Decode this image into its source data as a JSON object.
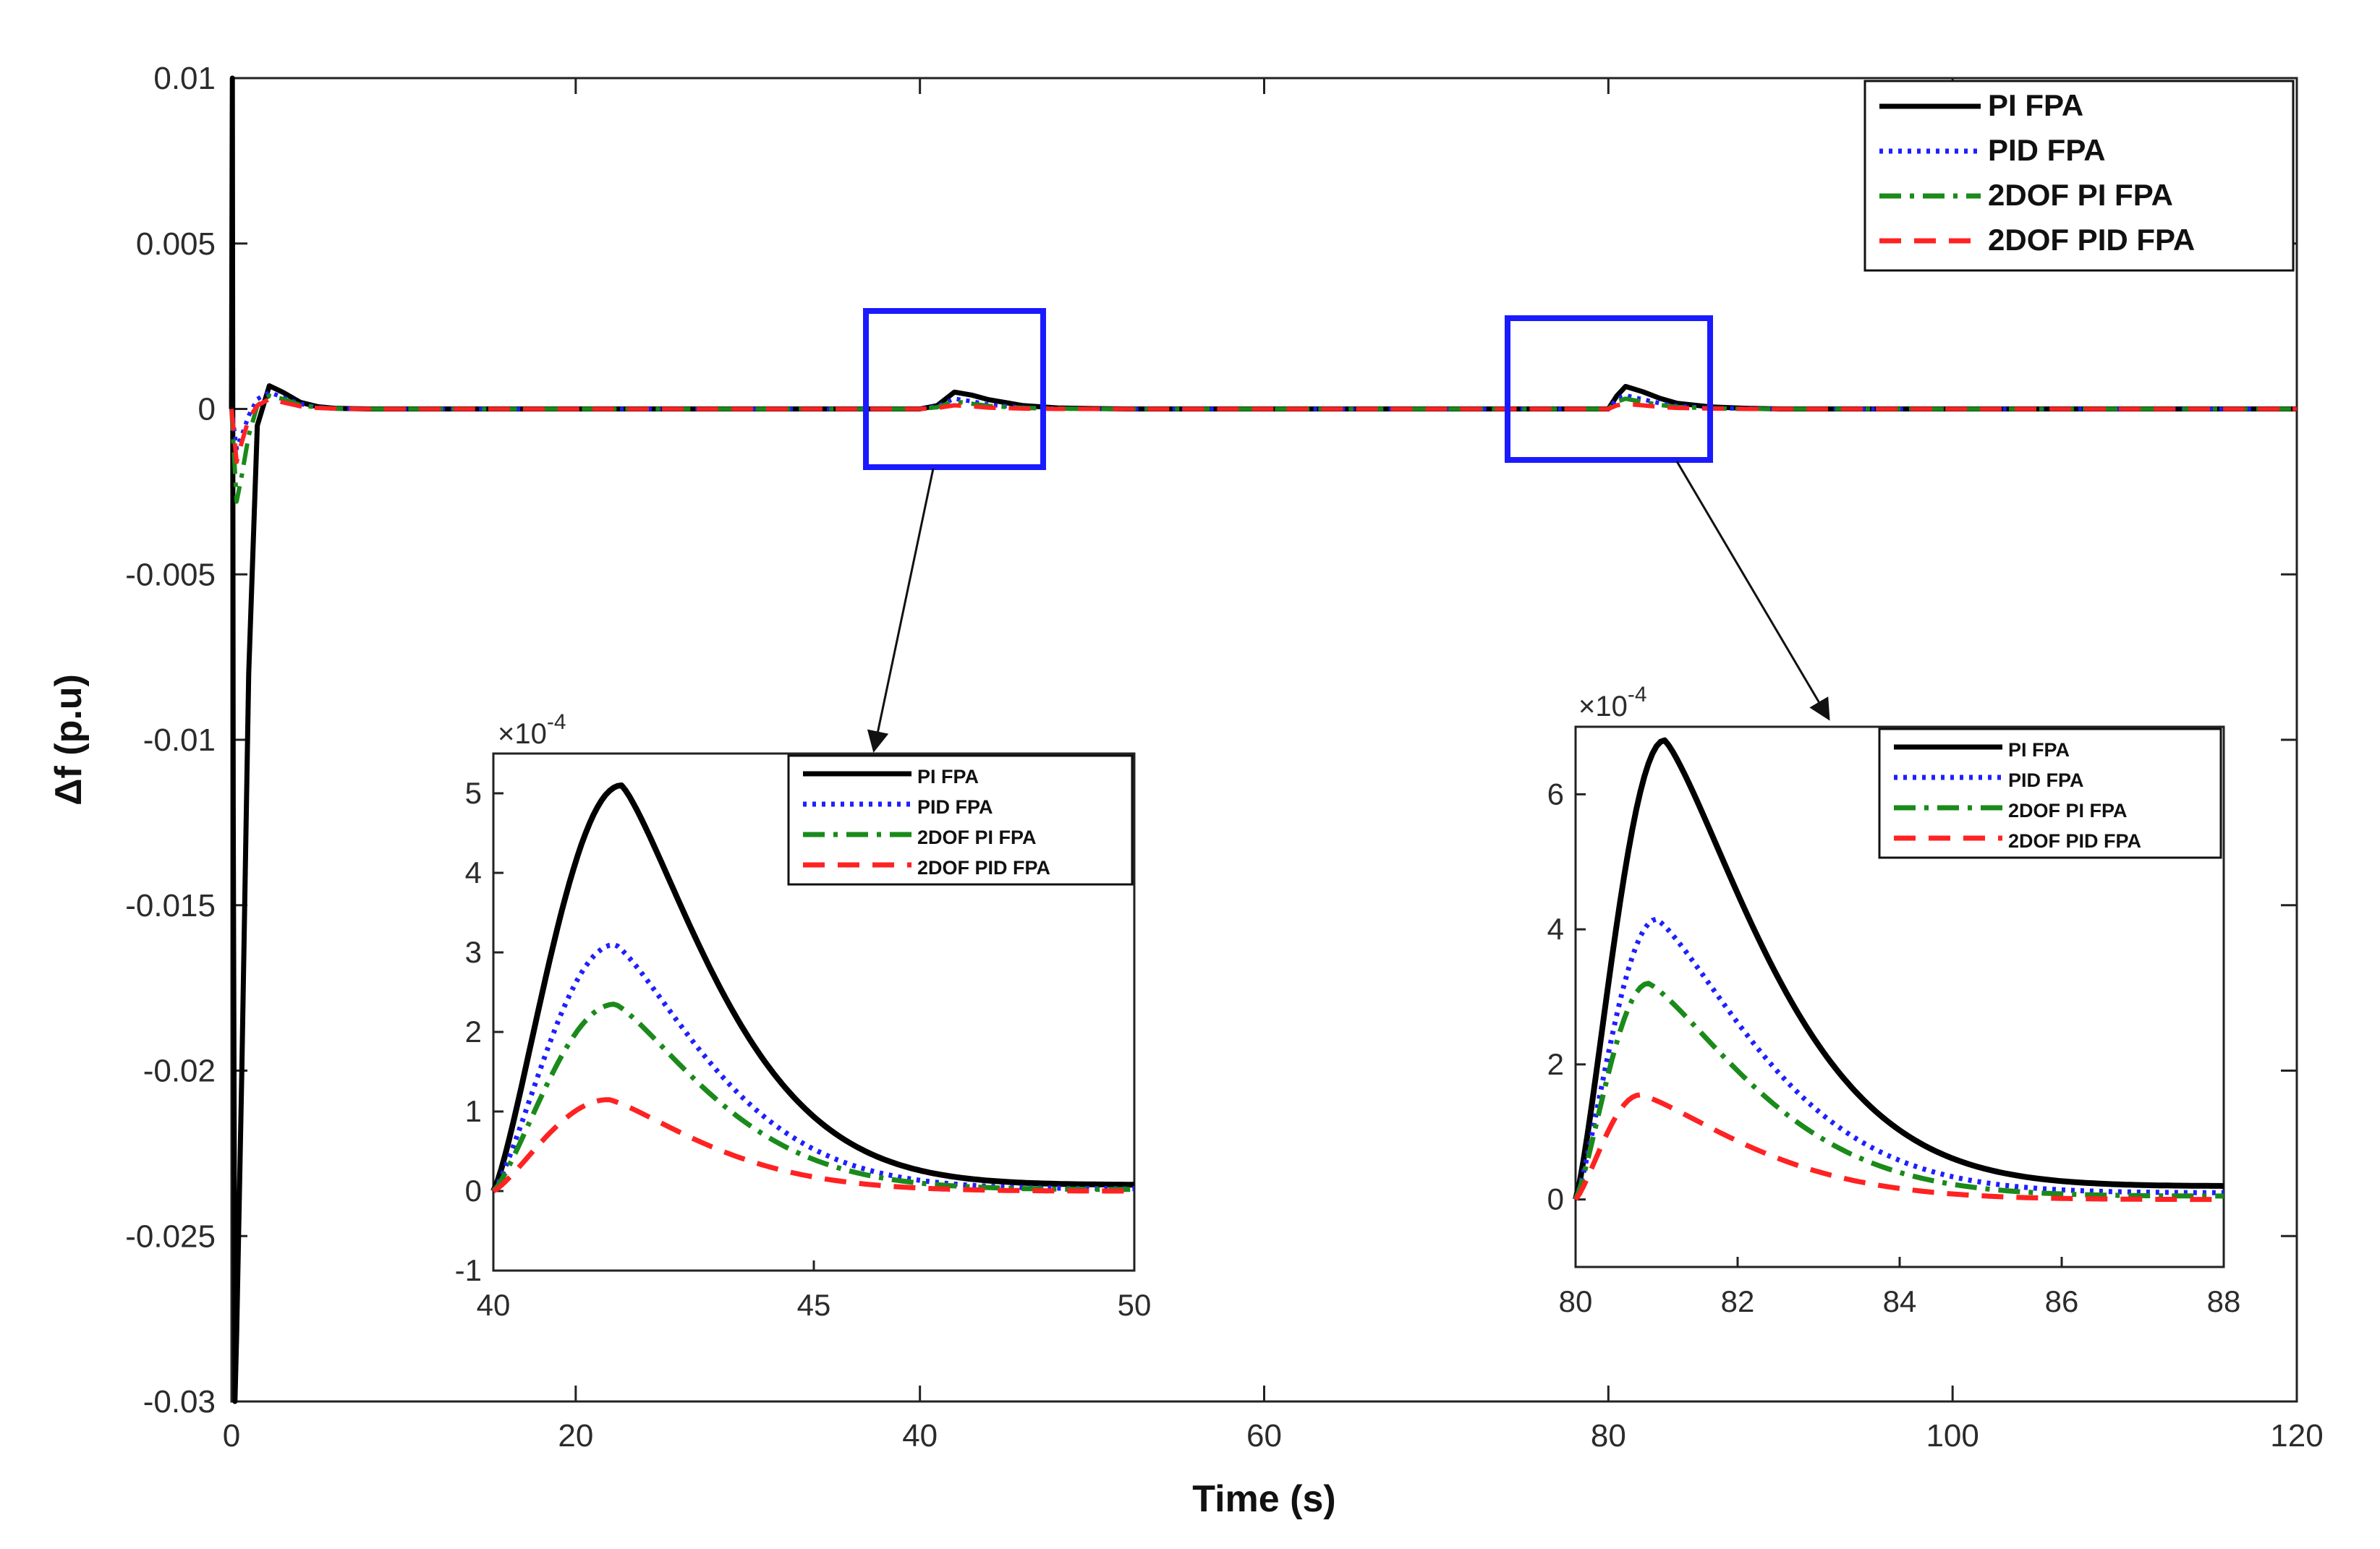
{
  "colors": {
    "pi_fpa": "#000000",
    "pid_fpa": "#1f1fff",
    "twodof_pi_fpa": "#1a8a1a",
    "twodof_pid_fpa": "#ff2222",
    "zoom_box": "#1a1aff"
  },
  "chart_data": [
    {
      "id": "main",
      "type": "line",
      "xlabel": "Time (s)",
      "ylabel": "Δf (p.u)",
      "xlim": [
        0,
        120
      ],
      "ylim": [
        -0.03,
        0.01
      ],
      "x_ticks": [
        0,
        20,
        40,
        60,
        80,
        100,
        120
      ],
      "x_tick_labels": [
        "0",
        "20",
        "40",
        "60",
        "80",
        "100",
        "120"
      ],
      "y_ticks": [
        0.01,
        0.005,
        0,
        -0.005,
        -0.01,
        -0.015,
        -0.02,
        -0.025,
        -0.03
      ],
      "y_tick_labels": [
        "0.01",
        "0.005",
        "0",
        "-0.005",
        "-0.01",
        "-0.015",
        "-0.02",
        "-0.025",
        "-0.03"
      ],
      "legend_position": "top-right",
      "series": [
        {
          "name": "PI FPA",
          "color_key": "pi_fpa",
          "style": "solid",
          "x": [
            0,
            0.05,
            0.1,
            0.2,
            0.3,
            0.6,
            1.0,
            1.5,
            2.2,
            3.0,
            4.0,
            5.0,
            6.0,
            8.0,
            10,
            40,
            41.0,
            42.0,
            43.0,
            44.0,
            46.0,
            48.0,
            50.0,
            52,
            80,
            80.5,
            81.0,
            82.0,
            83.0,
            84.0,
            86.0,
            88.0,
            90,
            120
          ],
          "y": [
            0,
            0.01,
            -0.012,
            -0.03,
            -0.028,
            -0.02,
            -0.008,
            -0.0005,
            0.0007,
            0.0005,
            0.0002,
            7e-05,
            2e-05,
            0,
            0,
            0,
            0.0001,
            0.00051,
            0.00042,
            0.00028,
            0.0001,
            3e-05,
            1e-05,
            0,
            0,
            0.0004,
            0.00068,
            0.00052,
            0.00032,
            0.00017,
            6e-05,
            2e-05,
            0,
            0
          ]
        },
        {
          "name": "PID FPA",
          "color_key": "pid_fpa",
          "style": "dotted",
          "x": [
            0,
            0.3,
            0.6,
            1.0,
            1.5,
            2.2,
            3.0,
            4.0,
            5.0,
            6.0,
            8.0,
            10,
            40,
            41.0,
            42.0,
            43.0,
            44.0,
            46.0,
            48.0,
            50.0,
            52,
            80,
            80.5,
            81.0,
            82.0,
            83.0,
            84.0,
            86.0,
            88.0,
            90,
            120
          ],
          "y": [
            0,
            -0.0012,
            -0.0008,
            -0.0002,
            0.0003,
            0.0005,
            0.00035,
            0.00015,
            5e-05,
            1e-05,
            0,
            0,
            0,
            8e-05,
            0.00031,
            0.00023,
            0.00013,
            4e-05,
            1e-05,
            0,
            0,
            0,
            0.0003,
            0.00041,
            0.00029,
            0.00017,
            9e-05,
            2e-05,
            1e-05,
            0,
            0
          ]
        },
        {
          "name": "2DOF PI FPA",
          "color_key": "twodof_pi_fpa",
          "style": "dashdot",
          "x": [
            0,
            0.3,
            0.6,
            1.0,
            1.5,
            2.2,
            3.0,
            4.0,
            5.0,
            6.0,
            8.0,
            10,
            40,
            41.0,
            42.0,
            43.0,
            44.0,
            46.0,
            48.0,
            50.0,
            52,
            80,
            80.5,
            81.0,
            82.0,
            83.0,
            84.0,
            86.0,
            88.0,
            90,
            120
          ],
          "y": [
            0,
            -0.0028,
            -0.002,
            -0.0008,
            0.0001,
            0.0004,
            0.0003,
            0.00012,
            4e-05,
            1e-05,
            0,
            0,
            0,
            5e-05,
            0.00023,
            0.00016,
            9e-05,
            3e-05,
            1e-05,
            0,
            0,
            0,
            0.00022,
            0.00031,
            0.00021,
            0.00012,
            6e-05,
            2e-05,
            0,
            0,
            0
          ]
        },
        {
          "name": "2DOF PID FPA",
          "color_key": "twodof_pid_fpa",
          "style": "dashed",
          "x": [
            0,
            0.3,
            0.6,
            1.0,
            1.5,
            2.2,
            3.0,
            4.0,
            5.0,
            6.0,
            8.0,
            10,
            40,
            41.0,
            42.0,
            43.0,
            44.0,
            46.0,
            48.0,
            50.0,
            52,
            80,
            80.5,
            81.0,
            82.0,
            83.0,
            84.0,
            86.0,
            88.0,
            90,
            120
          ],
          "y": [
            0,
            -0.0016,
            -0.001,
            -0.0003,
            0.0001,
            0.0003,
            0.0002,
            8e-05,
            3e-05,
            1e-05,
            0,
            0,
            0,
            3e-05,
            0.00011,
            8e-05,
            4e-05,
            1e-05,
            0,
            0,
            0,
            0,
            0.00011,
            0.00015,
            0.00011,
            6e-05,
            3e-05,
            1e-05,
            0,
            0,
            0
          ]
        }
      ]
    },
    {
      "id": "inset1",
      "type": "line",
      "xlim": [
        40,
        50
      ],
      "ylim": [
        -1,
        5.5
      ],
      "y_scale_label": "×10",
      "y_scale_exp": "-4",
      "x_ticks": [
        40,
        45,
        50
      ],
      "x_tick_labels": [
        "40",
        "45",
        "50"
      ],
      "y_ticks": [
        5,
        4,
        3,
        2,
        1,
        0,
        -1
      ],
      "y_tick_labels": [
        "5",
        "4",
        "3",
        "2",
        "1",
        "0",
        "-1"
      ],
      "legend_position": "top-right",
      "series": [
        {
          "name": "PI FPA",
          "color_key": "pi_fpa",
          "style": "solid",
          "peak_x": 42.0,
          "peak": 5.1,
          "tail": 0.08
        },
        {
          "name": "PID FPA",
          "color_key": "pid_fpa",
          "style": "dotted",
          "peak_x": 41.9,
          "peak": 3.1,
          "tail": 0.03
        },
        {
          "name": "2DOF PI FPA",
          "color_key": "twodof_pi_fpa",
          "style": "dashdot",
          "peak_x": 41.9,
          "peak": 2.35,
          "tail": 0.02
        },
        {
          "name": "2DOF PID FPA",
          "color_key": "twodof_pid_fpa",
          "style": "dashed",
          "peak_x": 41.8,
          "peak": 1.15,
          "tail": 0.0
        }
      ]
    },
    {
      "id": "inset2",
      "type": "line",
      "xlim": [
        80,
        88
      ],
      "ylim": [
        -1,
        7
      ],
      "y_scale_label": "×10",
      "y_scale_exp": "-4",
      "x_ticks": [
        80,
        82,
        84,
        86,
        88
      ],
      "x_tick_labels": [
        "80",
        "82",
        "84",
        "86",
        "88"
      ],
      "y_ticks": [
        6,
        4,
        2,
        0
      ],
      "y_tick_labels": [
        "6",
        "4",
        "2",
        "0"
      ],
      "legend_position": "top-right",
      "series": [
        {
          "name": "PI FPA",
          "color_key": "pi_fpa",
          "style": "solid",
          "peak_x": 81.1,
          "peak": 6.8,
          "tail": 0.2
        },
        {
          "name": "PID FPA",
          "color_key": "pid_fpa",
          "style": "dotted",
          "peak_x": 81.0,
          "peak": 4.15,
          "tail": 0.1
        },
        {
          "name": "2DOF PI FPA",
          "color_key": "twodof_pi_fpa",
          "style": "dashdot",
          "peak_x": 80.9,
          "peak": 3.2,
          "tail": 0.05
        },
        {
          "name": "2DOF PID FPA",
          "color_key": "twodof_pid_fpa",
          "style": "dashed",
          "peak_x": 80.8,
          "peak": 1.55,
          "tail": 0.0
        }
      ]
    }
  ]
}
